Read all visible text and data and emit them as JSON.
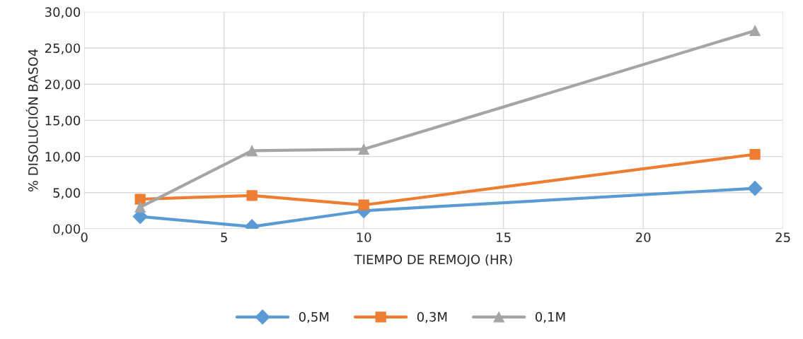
{
  "chart_data": {
    "type": "line",
    "xlabel": "TIEMPO DE REMOJO (HR)",
    "ylabel": "% DISOLUCIÓN BASO4",
    "series": [
      {
        "name": "0,5M",
        "color": "#5b9bd5",
        "marker": "diamond",
        "x": [
          2,
          6,
          10,
          24
        ],
        "values": [
          1.7,
          0.3,
          2.5,
          5.6
        ]
      },
      {
        "name": "0,3M",
        "color": "#ed7d31",
        "marker": "square",
        "x": [
          2,
          6,
          10,
          24
        ],
        "values": [
          4.1,
          4.6,
          3.3,
          10.3
        ]
      },
      {
        "name": "0,1M",
        "color": "#a5a5a5",
        "marker": "triangle",
        "x": [
          2,
          6,
          10,
          24
        ],
        "values": [
          3.0,
          10.8,
          11.0,
          27.4
        ]
      }
    ],
    "xlim": [
      0,
      25
    ],
    "xticks": [
      0,
      5,
      10,
      15,
      20,
      25
    ],
    "ylim": [
      0,
      30
    ],
    "yticks": [
      {
        "value": 0,
        "label": "0,00"
      },
      {
        "value": 5,
        "label": "5,00"
      },
      {
        "value": 10,
        "label": "10,00"
      },
      {
        "value": 15,
        "label": "15,00"
      },
      {
        "value": 20,
        "label": "20,00"
      },
      {
        "value": 25,
        "label": "25,00"
      },
      {
        "value": 30,
        "label": "30,00"
      }
    ],
    "grid": true,
    "legend": "bottom",
    "line_style": "solid"
  }
}
